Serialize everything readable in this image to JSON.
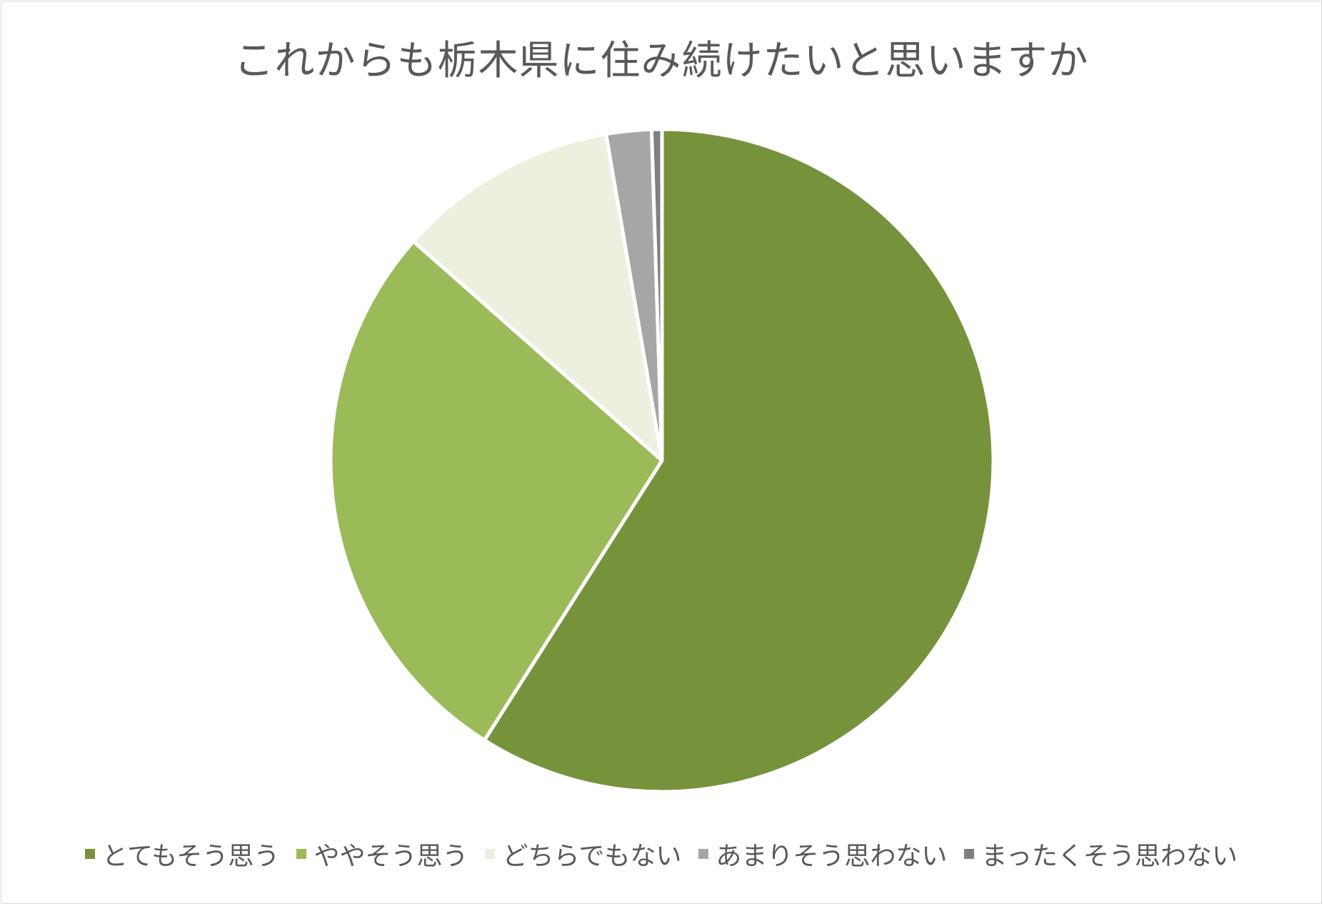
{
  "chart_data": {
    "type": "pie",
    "title": "これからも栃木県に住み続けたいと思いますか",
    "categories": [
      "とてもそう思う",
      "ややそう思う",
      "どちらでもない",
      "あまりそう思わない",
      "まったくそう思わない"
    ],
    "values": [
      59.0,
      27.5,
      10.8,
      2.2,
      0.5
    ],
    "colors": [
      "#76933c",
      "#9bbb59",
      "#ebf1de",
      "#a6a6a6",
      "#7f7f7f"
    ],
    "start_angle": "12 o'clock",
    "direction": "clockwise",
    "legend_position": "bottom"
  }
}
